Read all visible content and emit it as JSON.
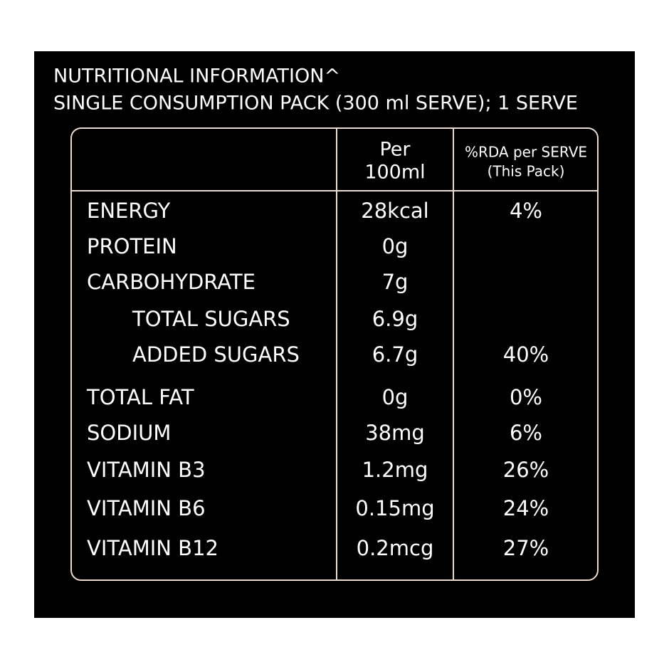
{
  "header": {
    "title_lines": [
      "NUTRITIONAL INFORMATION^",
      "SINGLE CONSUMPTION PACK (300 ml SERVE); 1 SERVE"
    ]
  },
  "table": {
    "columns": [
      [
        "Per",
        "100ml"
      ],
      [
        "%RDA per SERVE",
        "(This Pack)"
      ]
    ],
    "rows": [
      {
        "cells": [
          "ENERGY",
          "28kcal",
          "4%"
        ]
      },
      {
        "cells": [
          "PROTEIN",
          "0g"
        ]
      },
      {
        "cells": [
          "CARBOHYDRATE",
          "7g"
        ],
        "sub_rows": [
          {
            "cells": [
              "TOTAL SUGARS",
              "6.9g"
            ]
          },
          {
            "cells": [
              "ADDED SUGARS",
              "6.7g",
              "40%"
            ]
          }
        ]
      },
      {
        "cells": [
          "TOTAL FAT",
          "0g",
          "0%"
        ]
      },
      {
        "cells": [
          "SODIUM",
          "38mg",
          "6%"
        ]
      },
      {
        "cells": [
          "VITAMIN B3",
          "1.2mg",
          "26%"
        ]
      },
      {
        "cells": [
          "VITAMIN B6",
          "0.15mg",
          "24%"
        ]
      },
      {
        "cells": [
          "VITAMIN B12",
          "0.2mcg",
          "27%"
        ]
      }
    ]
  }
}
